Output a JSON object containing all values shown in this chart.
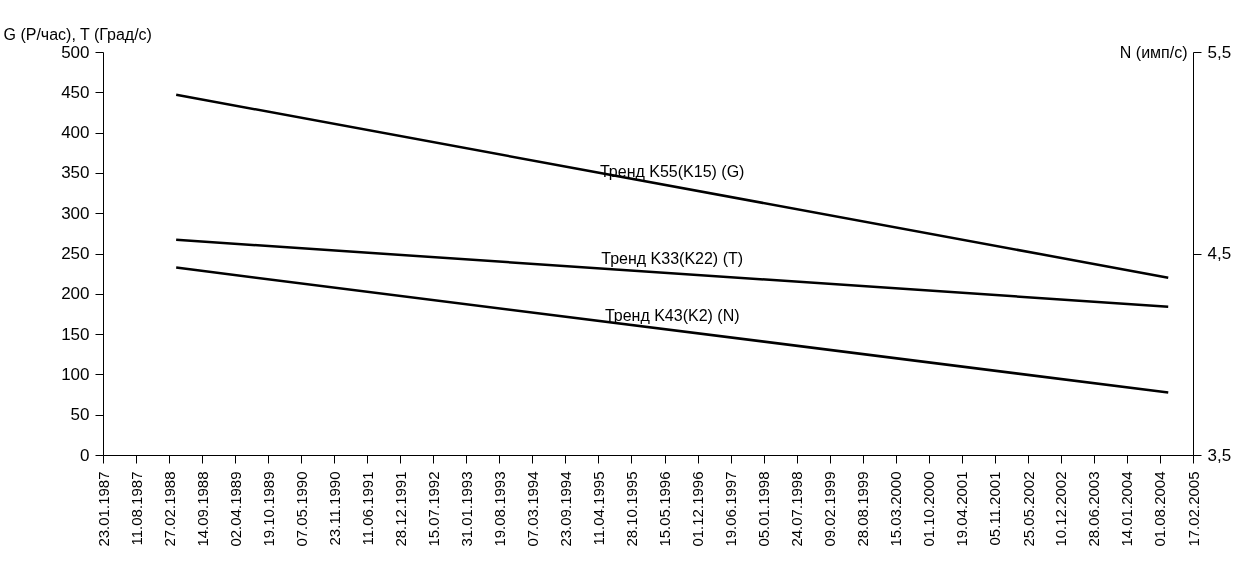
{
  "chart_data": {
    "type": "line",
    "ylabel": "G (Р/час), T (Град/с)",
    "y2label": "N (имп/с)",
    "xlim": [
      "1987-01-23",
      "2005-02-17"
    ],
    "xticks": [
      {
        "value": "1987-01-23",
        "label": "23.01.1987"
      },
      {
        "value": "1987-08-11",
        "label": "11.08.1987"
      },
      {
        "value": "1988-02-27",
        "label": "27.02.1988"
      },
      {
        "value": "1988-09-14",
        "label": "14.09.1988"
      },
      {
        "value": "1989-04-02",
        "label": "02.04.1989"
      },
      {
        "value": "1989-10-19",
        "label": "19.10.1989"
      },
      {
        "value": "1990-05-07",
        "label": "07.05.1990"
      },
      {
        "value": "1990-11-23",
        "label": "23.11.1990"
      },
      {
        "value": "1991-06-11",
        "label": "11.06.1991"
      },
      {
        "value": "1991-12-28",
        "label": "28.12.1991"
      },
      {
        "value": "1992-07-15",
        "label": "15.07.1992"
      },
      {
        "value": "1993-01-31",
        "label": "31.01.1993"
      },
      {
        "value": "1993-08-19",
        "label": "19.08.1993"
      },
      {
        "value": "1994-03-07",
        "label": "07.03.1994"
      },
      {
        "value": "1994-09-23",
        "label": "23.09.1994"
      },
      {
        "value": "1995-04-11",
        "label": "11.04.1995"
      },
      {
        "value": "1995-10-28",
        "label": "28.10.1995"
      },
      {
        "value": "1996-05-15",
        "label": "15.05.1996"
      },
      {
        "value": "1996-12-01",
        "label": "01.12.1996"
      },
      {
        "value": "1997-06-19",
        "label": "19.06.1997"
      },
      {
        "value": "1998-01-05",
        "label": "05.01.1998"
      },
      {
        "value": "1998-07-24",
        "label": "24.07.1998"
      },
      {
        "value": "1999-02-09",
        "label": "09.02.1999"
      },
      {
        "value": "1999-08-28",
        "label": "28.08.1999"
      },
      {
        "value": "2000-03-15",
        "label": "15.03.2000"
      },
      {
        "value": "2000-10-01",
        "label": "01.10.2000"
      },
      {
        "value": "2001-04-19",
        "label": "19.04.2001"
      },
      {
        "value": "2001-11-05",
        "label": "05.11.2001"
      },
      {
        "value": "2002-05-25",
        "label": "25.05.2002"
      },
      {
        "value": "2002-12-10",
        "label": "10.12.2002"
      },
      {
        "value": "2003-06-28",
        "label": "28.06.2003"
      },
      {
        "value": "2004-01-14",
        "label": "14.01.2004"
      },
      {
        "value": "2004-08-01",
        "label": "01.08.2004"
      },
      {
        "value": "2005-02-17",
        "label": "17.02.2005"
      }
    ],
    "ylim": [
      0,
      500
    ],
    "yticks": [
      0,
      50,
      100,
      150,
      200,
      250,
      300,
      350,
      400,
      450,
      500
    ],
    "y2lim": [
      3.5,
      5.5
    ],
    "y2ticks": [
      {
        "value": 3.5,
        "label": "3,5"
      },
      {
        "value": 4.5,
        "label": "4,5"
      },
      {
        "value": 5.5,
        "label": "5,5"
      }
    ],
    "x": [
      "1988-04-10",
      "2004-09-20"
    ],
    "series": [
      {
        "name": "Тренд K55(K15) (G)",
        "color": "#000000",
        "values": [
          447,
          220
        ]
      },
      {
        "name": "Тренд K33(K22) (T)",
        "color": "#000000",
        "values": [
          267,
          184
        ]
      },
      {
        "name": "Тренд K43(K2) (N)",
        "color": "#000000",
        "values": [
          4.43,
          3.81
        ],
        "axis": "y2"
      }
    ],
    "marker": "none",
    "line_style": "solid"
  }
}
